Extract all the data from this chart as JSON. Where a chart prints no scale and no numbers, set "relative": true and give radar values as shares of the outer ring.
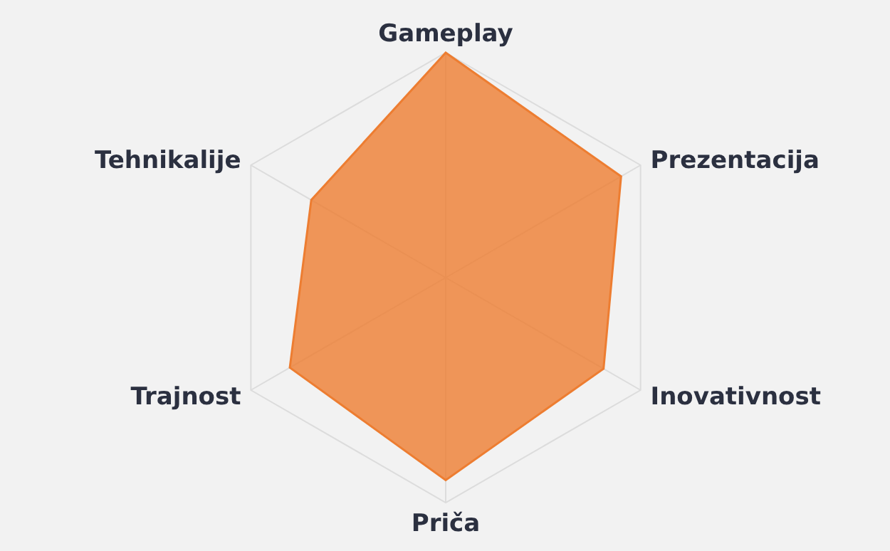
{
  "chart_data": {
    "type": "radar",
    "relative": true,
    "grid": true,
    "categories": [
      "Gameplay",
      "Prezentacija",
      "Inovativnost",
      "Priča",
      "Trajnost",
      "Tehnikalije"
    ],
    "series": [
      {
        "color": "#ed7d31",
        "values": [
          1.0,
          0.9,
          0.81,
          0.9,
          0.8,
          0.69
        ]
      }
    ]
  }
}
